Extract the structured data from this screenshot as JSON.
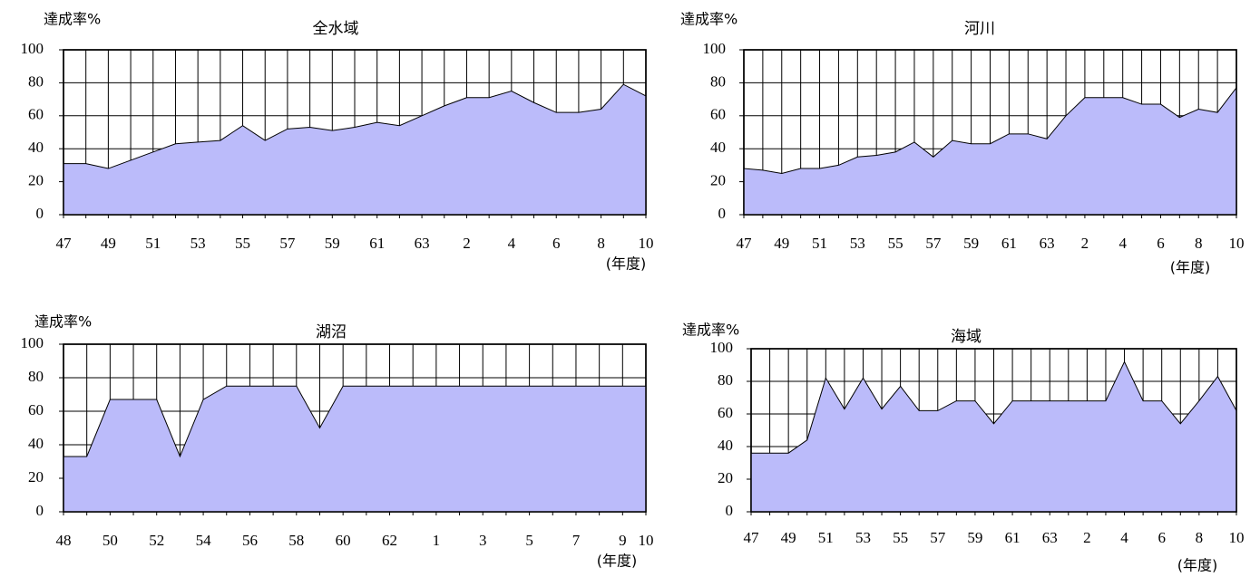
{
  "chart_data": [
    {
      "type": "area",
      "title": "全水域",
      "ylabel": "達成率%",
      "xlabel": "(年度)",
      "categories": [
        "47",
        null,
        "49",
        null,
        "51",
        null,
        "53",
        null,
        "55",
        null,
        "57",
        null,
        "59",
        null,
        "61",
        null,
        "63",
        null,
        "2",
        null,
        "4",
        null,
        "6",
        null,
        "8",
        null,
        "10"
      ],
      "values": [
        31,
        31,
        28,
        33,
        38,
        43,
        44,
        45,
        54,
        45,
        52,
        53,
        51,
        53,
        56,
        54,
        60,
        66,
        71,
        71,
        75,
        68,
        62,
        62,
        64,
        79,
        72
      ],
      "color": "#bbbbfa",
      "ylim": [
        0,
        100
      ],
      "yticks": [
        0,
        20,
        40,
        60,
        80,
        100
      ],
      "grid": true
    },
    {
      "type": "area",
      "title": "河川",
      "ylabel": "達成率%",
      "xlabel": "(年度)",
      "categories": [
        "47",
        null,
        "49",
        null,
        "51",
        null,
        "53",
        null,
        "55",
        null,
        "57",
        null,
        "59",
        null,
        "61",
        null,
        "63",
        null,
        "2",
        null,
        "4",
        null,
        "6",
        null,
        "8",
        null,
        "10"
      ],
      "values": [
        28,
        27,
        25,
        28,
        28,
        30,
        35,
        36,
        38,
        44,
        35,
        45,
        43,
        43,
        49,
        49,
        46,
        60,
        71,
        71,
        71,
        67,
        67,
        59,
        64,
        62,
        77
      ],
      "color": "#bbbbfa",
      "ylim": [
        0,
        100
      ],
      "yticks": [
        0,
        20,
        40,
        60,
        80,
        100
      ],
      "grid": true
    },
    {
      "type": "area",
      "title": "湖沼",
      "ylabel": "達成率%",
      "xlabel": "(年度)",
      "categories": [
        "48",
        null,
        "50",
        null,
        "52",
        null,
        "54",
        null,
        "56",
        null,
        "58",
        null,
        "60",
        null,
        "62",
        null,
        "1",
        null,
        "3",
        null,
        "5",
        null,
        "7",
        null,
        "9",
        "10"
      ],
      "values": [
        33,
        33,
        67,
        67,
        67,
        33,
        67,
        75,
        75,
        75,
        75,
        50,
        75,
        75,
        75,
        75,
        75,
        75,
        75,
        75,
        75,
        75,
        75,
        75,
        75,
        75
      ],
      "color": "#bbbbfa",
      "ylim": [
        0,
        100
      ],
      "yticks": [
        0,
        20,
        40,
        60,
        80,
        100
      ],
      "grid": true
    },
    {
      "type": "area",
      "title": "海域",
      "ylabel": "達成率%",
      "xlabel": "(年度)",
      "categories": [
        "47",
        null,
        "49",
        null,
        "51",
        null,
        "53",
        null,
        "55",
        null,
        "57",
        null,
        "59",
        null,
        "61",
        null,
        "63",
        null,
        "2",
        null,
        "4",
        null,
        "6",
        null,
        "8",
        null,
        "10"
      ],
      "values": [
        36,
        36,
        36,
        44,
        82,
        63,
        82,
        63,
        77,
        62,
        62,
        68,
        68,
        54,
        68,
        68,
        68,
        68,
        68,
        68,
        92,
        68,
        68,
        54,
        68,
        83,
        62
      ],
      "color": "#bbbbfa",
      "ylim": [
        0,
        100
      ],
      "yticks": [
        0,
        20,
        40,
        60,
        80,
        100
      ],
      "grid": true
    }
  ]
}
